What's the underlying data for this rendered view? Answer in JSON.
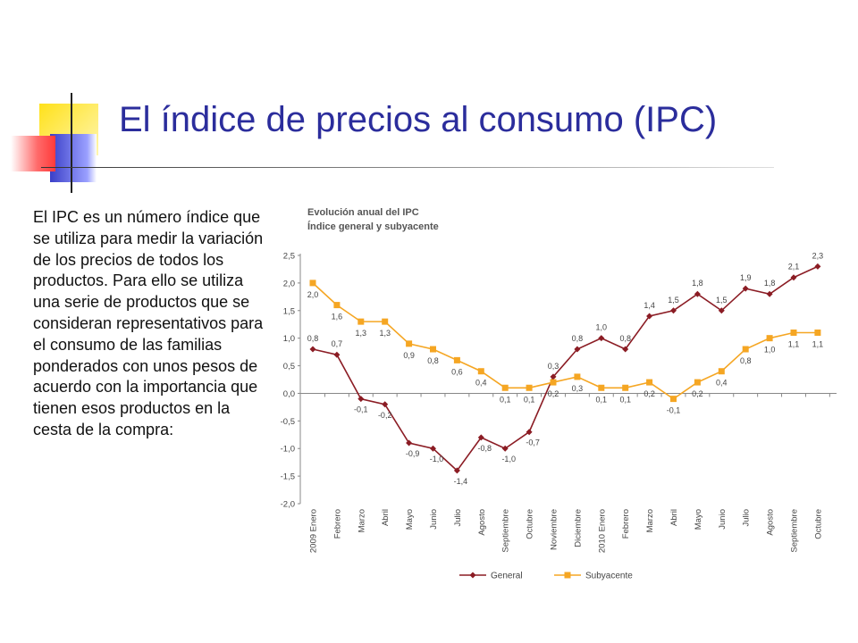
{
  "slide": {
    "title": "El índice de precios al consumo (IPC)",
    "body": "El IPC es un número índice que se utiliza para medir la variación de los precios de todos los productos. Para ello se utiliza una serie de productos que se consideran representativos para el consumo de las familias ponderados con unos pesos de acuerdo con la importancia que tienen esos productos en la cesta de la compra:"
  },
  "colors": {
    "general": "#8b1c24",
    "subyacente": "#f5a623",
    "title": "#2b2d9c"
  },
  "chart_data": {
    "type": "line",
    "title": "Evolución anual del IPC",
    "subtitle": "Índice general y subyacente",
    "xlabel": "",
    "ylabel": "",
    "ylim": [
      -2.0,
      2.5
    ],
    "yticks": [
      "2,5",
      "2,0",
      "1,5",
      "1,0",
      "0,5",
      "0,0",
      "-0,5",
      "-1,0",
      "-1,5",
      "-2,0"
    ],
    "grid": false,
    "legend": "bottom",
    "categories": [
      "2009 Enero",
      "Febrero",
      "Marzo",
      "Abril",
      "Mayo",
      "Junio",
      "Julio",
      "Agosto",
      "Septiembre",
      "Octubre",
      "Noviembre",
      "Diciembre",
      "2010 Enero",
      "Febrero",
      "Marzo",
      "Abril",
      "Mayo",
      "Junio",
      "Julio",
      "Agosto",
      "Septiembre",
      "Octubre"
    ],
    "series": [
      {
        "name": "General",
        "values": [
          0.8,
          0.7,
          -0.1,
          -0.2,
          -0.9,
          -1.0,
          -1.4,
          -0.8,
          -1.0,
          -0.7,
          0.3,
          0.8,
          1.0,
          0.8,
          1.4,
          1.5,
          1.8,
          1.5,
          1.9,
          1.8,
          2.1,
          2.3
        ],
        "labels": [
          "0,8",
          "0,7",
          "-0,1",
          "-0,2",
          "-0,9",
          "-1,0",
          "-1,4",
          "-0,8",
          "-1,0",
          "-0,7",
          "0,3",
          "0,8",
          "1,0",
          "0,8",
          "1,4",
          "1,5",
          "1,8",
          "1,5",
          "1,9",
          "1,8",
          "2,1",
          "2,3"
        ]
      },
      {
        "name": "Subyacente",
        "values": [
          2.0,
          1.6,
          1.3,
          1.3,
          0.9,
          0.8,
          0.6,
          0.4,
          0.1,
          0.1,
          0.2,
          0.3,
          0.1,
          0.1,
          0.2,
          -0.1,
          0.2,
          0.4,
          0.8,
          1.0,
          1.1,
          1.1
        ],
        "labels": [
          "2,0",
          "1,6",
          "1,3",
          "1,3",
          "0,9",
          "0,8",
          "0,6",
          "0,4",
          "0,1",
          "0,1",
          "0,2",
          "0,3",
          "0,1",
          "0,1",
          "0,2",
          "-0,1",
          "0,2",
          "0,4",
          "0,8",
          "1,0",
          "1,1",
          "1,1"
        ]
      }
    ]
  }
}
